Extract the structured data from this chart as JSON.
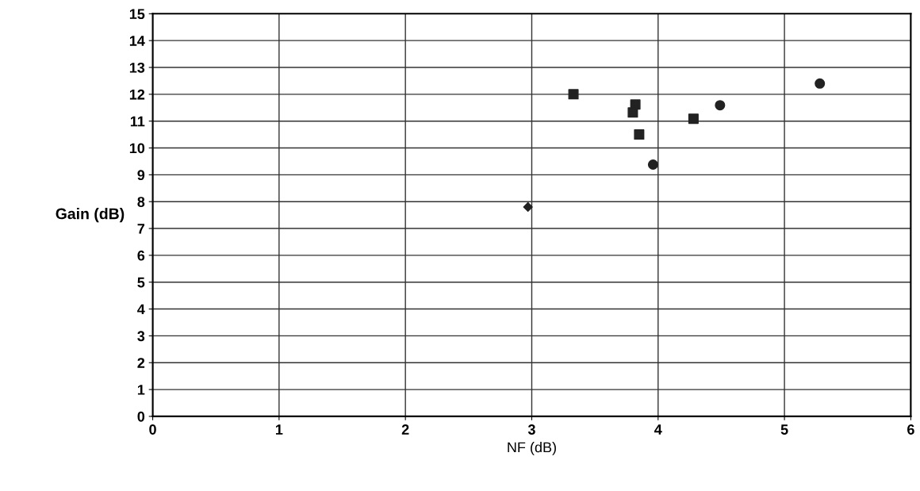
{
  "chart_data": {
    "type": "scatter",
    "xlabel": "NF (dB)",
    "ylabel": "Gain (dB)",
    "xlim": [
      0,
      6
    ],
    "xticks": [
      0,
      1,
      2,
      3,
      4,
      5,
      6
    ],
    "ylim": [
      0,
      15
    ],
    "yticks": [
      0,
      1,
      2,
      3,
      4,
      5,
      6,
      7,
      8,
      9,
      10,
      11,
      12,
      13,
      14,
      15
    ],
    "grid": true,
    "legend": false,
    "series": [
      {
        "color": "#222222",
        "marker": "diamond",
        "x": [
          2.97
        ],
        "values": [
          7.8
        ]
      },
      {
        "color": "#222222",
        "marker": "square",
        "x": [
          3.33,
          3.82,
          3.8,
          3.85,
          4.28
        ],
        "values": [
          12.0,
          11.62,
          11.32,
          10.5,
          11.09
        ]
      },
      {
        "color": "#222222",
        "marker": "circle",
        "x": [
          3.96,
          4.49,
          5.28
        ],
        "values": [
          9.38,
          11.59,
          12.4
        ]
      }
    ]
  }
}
